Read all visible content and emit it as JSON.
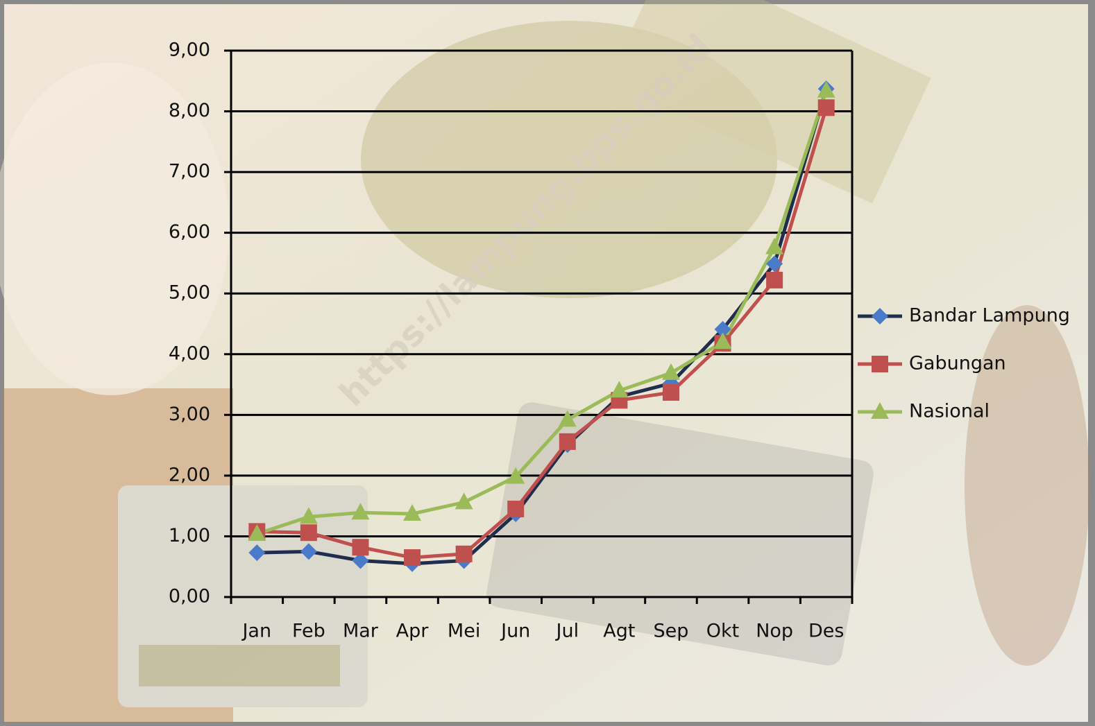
{
  "chart_data": {
    "type": "line",
    "watermark": "https://lampung.bps.go.id",
    "categories": [
      "Jan",
      "Feb",
      "Mar",
      "Apr",
      "Mei",
      "Jun",
      "Jul",
      "Agt",
      "Sep",
      "Okt",
      "Nop",
      "Des"
    ],
    "series": [
      {
        "name": "Bandar Lampung",
        "color": "#1f2d4e",
        "marker": "diamond",
        "marker_color": "#4a7bc8",
        "values": [
          0.73,
          0.75,
          0.6,
          0.55,
          0.6,
          1.37,
          2.51,
          3.3,
          3.52,
          4.41,
          5.49,
          8.37
        ]
      },
      {
        "name": "Gabungan",
        "color": "#c0504d",
        "marker": "square",
        "marker_color": "#c0504d",
        "values": [
          1.08,
          1.06,
          0.82,
          0.65,
          0.71,
          1.45,
          2.56,
          3.24,
          3.37,
          4.18,
          5.22,
          8.06
        ]
      },
      {
        "name": "Nasional",
        "color": "#9bbb59",
        "marker": "triangle",
        "marker_color": "#9bbb59",
        "values": [
          1.04,
          1.32,
          1.39,
          1.37,
          1.56,
          1.98,
          2.92,
          3.4,
          3.69,
          4.2,
          5.76,
          8.34
        ]
      }
    ],
    "ylim": [
      0,
      9
    ],
    "yticks": [
      {
        "value": 0,
        "label": "0,00"
      },
      {
        "value": 1,
        "label": "1,00"
      },
      {
        "value": 2,
        "label": "2,00"
      },
      {
        "value": 3,
        "label": "3,00"
      },
      {
        "value": 4,
        "label": "4,00"
      },
      {
        "value": 5,
        "label": "5,00"
      },
      {
        "value": 6,
        "label": "6,00"
      },
      {
        "value": 7,
        "label": "7,00"
      },
      {
        "value": 8,
        "label": "8,00"
      },
      {
        "value": 9,
        "label": "9,00"
      }
    ],
    "grid": true,
    "legend": "right"
  }
}
